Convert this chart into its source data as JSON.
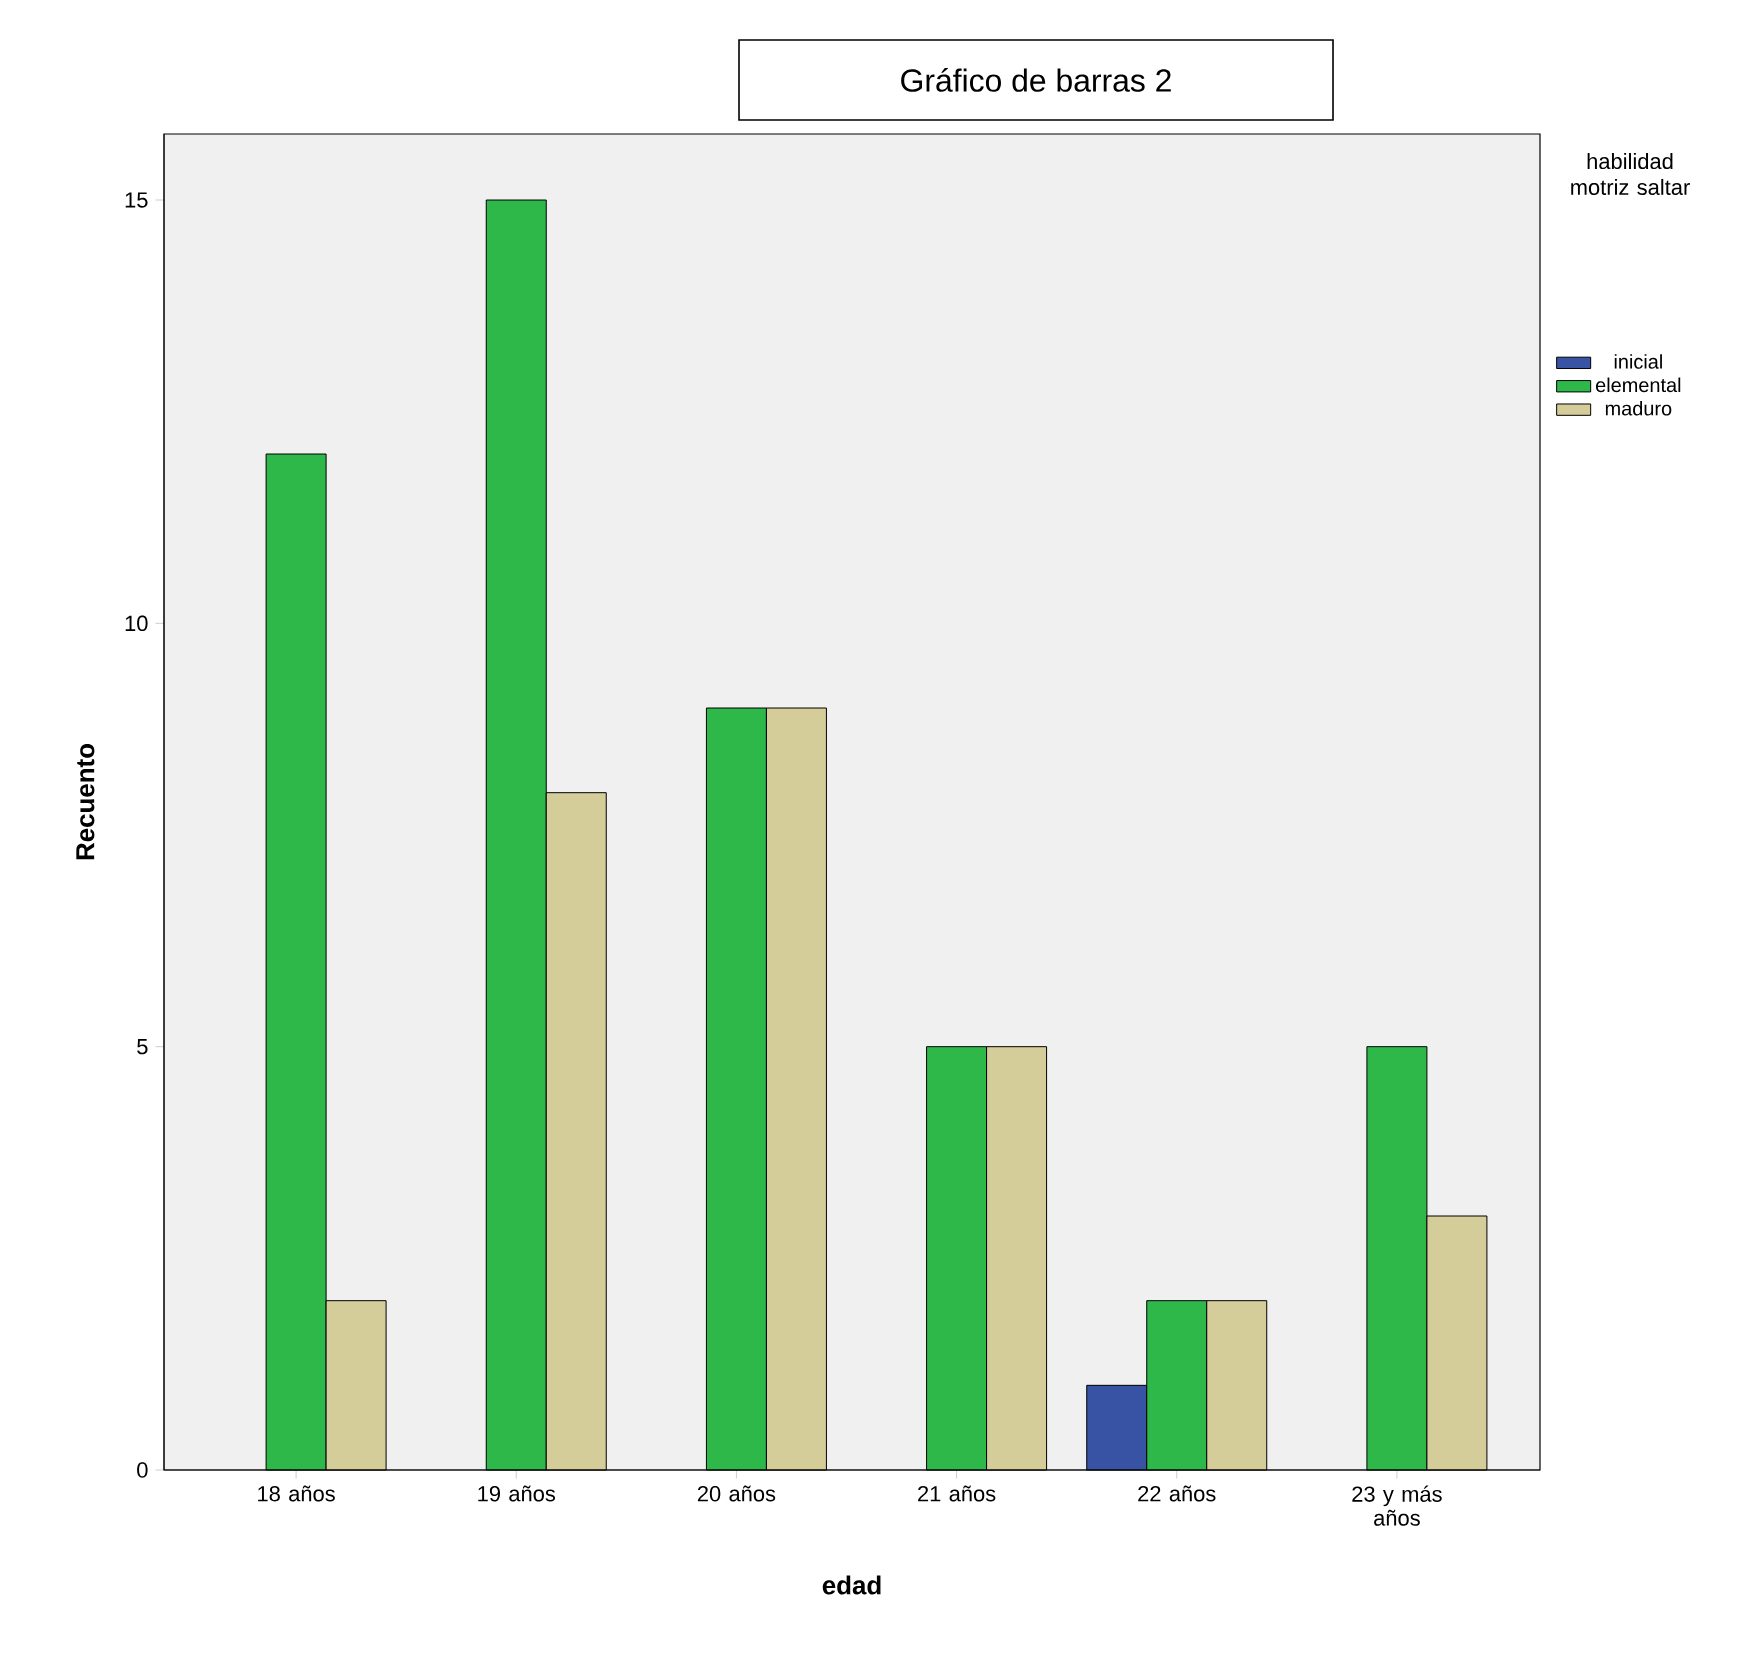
{
  "chart_data": {
    "type": "bar",
    "title": "Gráfico de barras 2",
    "xlabel": "edad",
    "ylabel": "Recuento",
    "legend_title": "habilidad motriz saltar",
    "categories": [
      "18 años",
      "19 años",
      "20 años",
      "21 años",
      "22 años",
      "23 y más años"
    ],
    "series": [
      {
        "name": "inicial",
        "color": "#3953a4",
        "values": [
          null,
          null,
          null,
          null,
          1,
          null
        ]
      },
      {
        "name": "elemental",
        "color": "#2eb84a",
        "values": [
          12,
          15,
          9,
          5,
          2,
          5
        ]
      },
      {
        "name": "maduro",
        "color": "#d4cc99",
        "values": [
          2,
          8,
          9,
          5,
          2,
          3
        ]
      }
    ],
    "ylim": [
      0,
      15.78
    ],
    "yticks": [
      0,
      5,
      10,
      15
    ],
    "grid": false,
    "legend": "right"
  }
}
